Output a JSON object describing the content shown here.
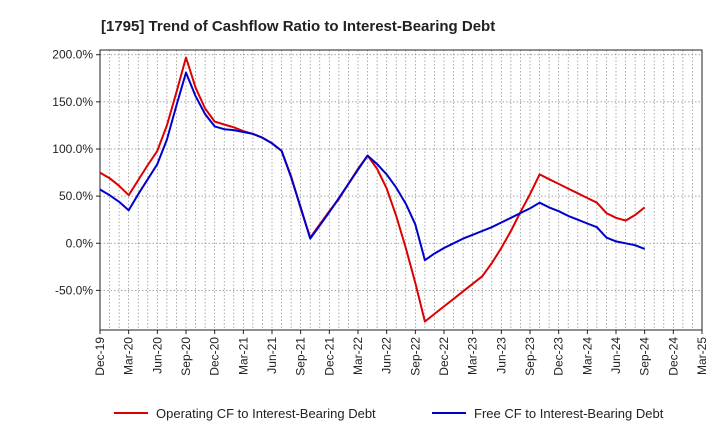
{
  "chart_data": {
    "type": "line",
    "title": "[1795]  Trend of Cashflow Ratio to Interest-Bearing Debt",
    "xlabel": "",
    "ylabel": "",
    "ylim": [
      -92,
      205
    ],
    "yticks": [
      200,
      150,
      100,
      50,
      0,
      -50
    ],
    "ytick_labels": [
      "200.0%",
      "150.0%",
      "100.0%",
      "50.0%",
      "0.0%",
      "-50.0%"
    ],
    "x_tick_labels": [
      "Dec-19",
      "Mar-20",
      "Jun-20",
      "Sep-20",
      "Dec-20",
      "Mar-21",
      "Jun-21",
      "Sep-21",
      "Dec-21",
      "Mar-22",
      "Jun-22",
      "Sep-22",
      "Dec-22",
      "Mar-23",
      "Jun-23",
      "Sep-23",
      "Dec-23",
      "Mar-24",
      "Jun-24",
      "Sep-24",
      "Dec-24",
      "Mar-25"
    ],
    "x_months": [
      "2019-12",
      "2020-01",
      "2020-02",
      "2020-03",
      "2020-04",
      "2020-05",
      "2020-06",
      "2020-07",
      "2020-08",
      "2020-09",
      "2020-10",
      "2020-11",
      "2020-12",
      "2021-01",
      "2021-02",
      "2021-03",
      "2021-04",
      "2021-05",
      "2021-06",
      "2021-07",
      "2021-08",
      "2021-09",
      "2021-10",
      "2021-11",
      "2021-12",
      "2022-01",
      "2022-02",
      "2022-03",
      "2022-04",
      "2022-05",
      "2022-06",
      "2022-07",
      "2022-08",
      "2022-09",
      "2022-10",
      "2022-11",
      "2022-12",
      "2023-01",
      "2023-02",
      "2023-03",
      "2023-04",
      "2023-05",
      "2023-06",
      "2023-07",
      "2023-08",
      "2023-09",
      "2023-10",
      "2023-11",
      "2023-12",
      "2024-01",
      "2024-02",
      "2024-03",
      "2024-04",
      "2024-05",
      "2024-06",
      "2024-07",
      "2024-08",
      "2024-09",
      "2024-10",
      "2024-11",
      "2024-12",
      "2025-01",
      "2025-02",
      "2025-03"
    ],
    "grid": true,
    "legend_position": "bottom",
    "series": [
      {
        "name": "Operating CF to Interest-Bearing Debt",
        "color": "#dd0000",
        "months": [
          "2019-12",
          "2020-01",
          "2020-02",
          "2020-03",
          "2020-04",
          "2020-05",
          "2020-06",
          "2020-07",
          "2020-08",
          "2020-09",
          "2020-10",
          "2020-11",
          "2020-12",
          "2021-01",
          "2021-02",
          "2021-03",
          "2021-04",
          "2021-05",
          "2021-06",
          "2021-07",
          "2021-08",
          "2021-09",
          "2021-10",
          "2021-11",
          "2021-12",
          "2022-01",
          "2022-02",
          "2022-03",
          "2022-04",
          "2022-05",
          "2022-06",
          "2022-07",
          "2022-08",
          "2022-09",
          "2022-10",
          "2022-11",
          "2022-12",
          "2023-01",
          "2023-02",
          "2023-03",
          "2023-04",
          "2023-05",
          "2023-06",
          "2023-07",
          "2023-08",
          "2023-09",
          "2023-10",
          "2023-11",
          "2023-12",
          "2024-01",
          "2024-02",
          "2024-03",
          "2024-04",
          "2024-05",
          "2024-06",
          "2024-07",
          "2024-08",
          "2024-09"
        ],
        "values": [
          75,
          69,
          61,
          51,
          67,
          83,
          98,
          125,
          160,
          197,
          165,
          143,
          129,
          126,
          123,
          119,
          116,
          112,
          106,
          98,
          71,
          37,
          6,
          20,
          34,
          47,
          63,
          79,
          93,
          79,
          58,
          29,
          -5,
          -42,
          -83,
          -75,
          -67,
          -59,
          -51,
          -43,
          -35,
          -21,
          -5,
          13,
          33,
          52,
          73,
          68,
          63,
          58,
          53,
          48,
          43,
          32,
          27,
          24,
          30,
          38
        ]
      },
      {
        "name": "Free CF to Interest-Bearing Debt",
        "color": "#0000cc",
        "months": [
          "2019-12",
          "2020-01",
          "2020-02",
          "2020-03",
          "2020-04",
          "2020-05",
          "2020-06",
          "2020-07",
          "2020-08",
          "2020-09",
          "2020-10",
          "2020-11",
          "2020-12",
          "2021-01",
          "2021-02",
          "2021-03",
          "2021-04",
          "2021-05",
          "2021-06",
          "2021-07",
          "2021-08",
          "2021-09",
          "2021-10",
          "2021-11",
          "2021-12",
          "2022-01",
          "2022-02",
          "2022-03",
          "2022-04",
          "2022-05",
          "2022-06",
          "2022-07",
          "2022-08",
          "2022-09",
          "2022-10",
          "2022-11",
          "2022-12",
          "2023-01",
          "2023-02",
          "2023-03",
          "2023-04",
          "2023-05",
          "2023-06",
          "2023-07",
          "2023-08",
          "2023-09",
          "2023-10",
          "2023-11",
          "2023-12",
          "2024-01",
          "2024-02",
          "2024-03",
          "2024-04",
          "2024-05",
          "2024-06",
          "2024-07",
          "2024-08",
          "2024-09"
        ],
        "values": [
          57,
          51,
          44,
          35,
          52,
          68,
          84,
          110,
          146,
          181,
          156,
          137,
          124,
          121,
          120,
          118,
          116,
          112,
          106,
          98,
          70,
          38,
          5,
          19,
          33,
          48,
          63,
          78,
          93,
          84,
          73,
          59,
          42,
          20,
          -18,
          -11,
          -5,
          0,
          5,
          9,
          13,
          17,
          22,
          27,
          32,
          37,
          43,
          38,
          34,
          29,
          25,
          21,
          17,
          6,
          2,
          0,
          -2,
          -6
        ]
      }
    ]
  }
}
